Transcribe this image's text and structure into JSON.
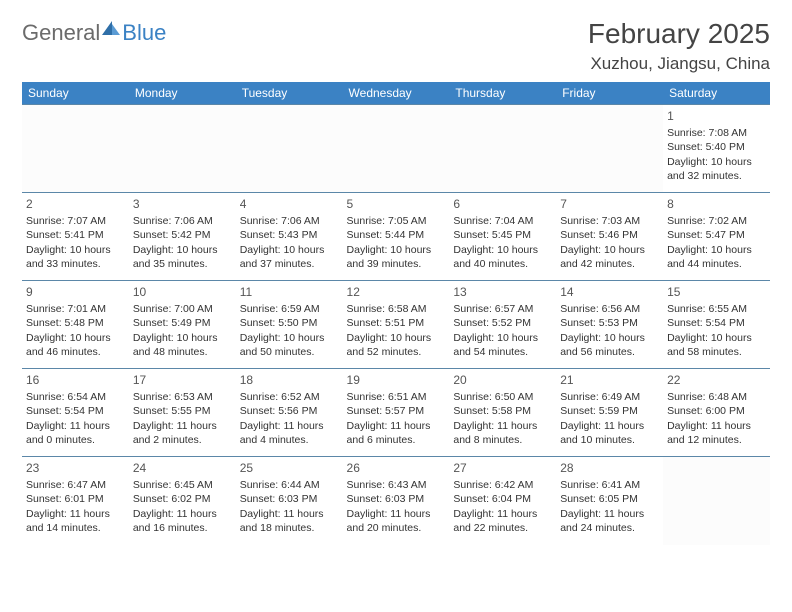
{
  "logo": {
    "general": "General",
    "blue": "Blue"
  },
  "title": "February 2025",
  "location": "Xuzhou, Jiangsu, China",
  "colors": {
    "header_bg": "#3b82c4",
    "header_text": "#ffffff",
    "row_border": "#5b87a8",
    "text": "#333333",
    "title_text": "#444444",
    "logo_gray": "#6b6b6b",
    "logo_blue": "#3b82c4"
  },
  "typography": {
    "title_fontsize": 28,
    "location_fontsize": 17,
    "dayhead_fontsize": 12,
    "daynum_fontsize": 12,
    "cell_fontsize": 10.5
  },
  "weekdays": [
    "Sunday",
    "Monday",
    "Tuesday",
    "Wednesday",
    "Thursday",
    "Friday",
    "Saturday"
  ],
  "weeks": [
    [
      null,
      null,
      null,
      null,
      null,
      null,
      {
        "n": "1",
        "sunrise": "Sunrise: 7:08 AM",
        "sunset": "Sunset: 5:40 PM",
        "daylight": "Daylight: 10 hours and 32 minutes."
      }
    ],
    [
      {
        "n": "2",
        "sunrise": "Sunrise: 7:07 AM",
        "sunset": "Sunset: 5:41 PM",
        "daylight": "Daylight: 10 hours and 33 minutes."
      },
      {
        "n": "3",
        "sunrise": "Sunrise: 7:06 AM",
        "sunset": "Sunset: 5:42 PM",
        "daylight": "Daylight: 10 hours and 35 minutes."
      },
      {
        "n": "4",
        "sunrise": "Sunrise: 7:06 AM",
        "sunset": "Sunset: 5:43 PM",
        "daylight": "Daylight: 10 hours and 37 minutes."
      },
      {
        "n": "5",
        "sunrise": "Sunrise: 7:05 AM",
        "sunset": "Sunset: 5:44 PM",
        "daylight": "Daylight: 10 hours and 39 minutes."
      },
      {
        "n": "6",
        "sunrise": "Sunrise: 7:04 AM",
        "sunset": "Sunset: 5:45 PM",
        "daylight": "Daylight: 10 hours and 40 minutes."
      },
      {
        "n": "7",
        "sunrise": "Sunrise: 7:03 AM",
        "sunset": "Sunset: 5:46 PM",
        "daylight": "Daylight: 10 hours and 42 minutes."
      },
      {
        "n": "8",
        "sunrise": "Sunrise: 7:02 AM",
        "sunset": "Sunset: 5:47 PM",
        "daylight": "Daylight: 10 hours and 44 minutes."
      }
    ],
    [
      {
        "n": "9",
        "sunrise": "Sunrise: 7:01 AM",
        "sunset": "Sunset: 5:48 PM",
        "daylight": "Daylight: 10 hours and 46 minutes."
      },
      {
        "n": "10",
        "sunrise": "Sunrise: 7:00 AM",
        "sunset": "Sunset: 5:49 PM",
        "daylight": "Daylight: 10 hours and 48 minutes."
      },
      {
        "n": "11",
        "sunrise": "Sunrise: 6:59 AM",
        "sunset": "Sunset: 5:50 PM",
        "daylight": "Daylight: 10 hours and 50 minutes."
      },
      {
        "n": "12",
        "sunrise": "Sunrise: 6:58 AM",
        "sunset": "Sunset: 5:51 PM",
        "daylight": "Daylight: 10 hours and 52 minutes."
      },
      {
        "n": "13",
        "sunrise": "Sunrise: 6:57 AM",
        "sunset": "Sunset: 5:52 PM",
        "daylight": "Daylight: 10 hours and 54 minutes."
      },
      {
        "n": "14",
        "sunrise": "Sunrise: 6:56 AM",
        "sunset": "Sunset: 5:53 PM",
        "daylight": "Daylight: 10 hours and 56 minutes."
      },
      {
        "n": "15",
        "sunrise": "Sunrise: 6:55 AM",
        "sunset": "Sunset: 5:54 PM",
        "daylight": "Daylight: 10 hours and 58 minutes."
      }
    ],
    [
      {
        "n": "16",
        "sunrise": "Sunrise: 6:54 AM",
        "sunset": "Sunset: 5:54 PM",
        "daylight": "Daylight: 11 hours and 0 minutes."
      },
      {
        "n": "17",
        "sunrise": "Sunrise: 6:53 AM",
        "sunset": "Sunset: 5:55 PM",
        "daylight": "Daylight: 11 hours and 2 minutes."
      },
      {
        "n": "18",
        "sunrise": "Sunrise: 6:52 AM",
        "sunset": "Sunset: 5:56 PM",
        "daylight": "Daylight: 11 hours and 4 minutes."
      },
      {
        "n": "19",
        "sunrise": "Sunrise: 6:51 AM",
        "sunset": "Sunset: 5:57 PM",
        "daylight": "Daylight: 11 hours and 6 minutes."
      },
      {
        "n": "20",
        "sunrise": "Sunrise: 6:50 AM",
        "sunset": "Sunset: 5:58 PM",
        "daylight": "Daylight: 11 hours and 8 minutes."
      },
      {
        "n": "21",
        "sunrise": "Sunrise: 6:49 AM",
        "sunset": "Sunset: 5:59 PM",
        "daylight": "Daylight: 11 hours and 10 minutes."
      },
      {
        "n": "22",
        "sunrise": "Sunrise: 6:48 AM",
        "sunset": "Sunset: 6:00 PM",
        "daylight": "Daylight: 11 hours and 12 minutes."
      }
    ],
    [
      {
        "n": "23",
        "sunrise": "Sunrise: 6:47 AM",
        "sunset": "Sunset: 6:01 PM",
        "daylight": "Daylight: 11 hours and 14 minutes."
      },
      {
        "n": "24",
        "sunrise": "Sunrise: 6:45 AM",
        "sunset": "Sunset: 6:02 PM",
        "daylight": "Daylight: 11 hours and 16 minutes."
      },
      {
        "n": "25",
        "sunrise": "Sunrise: 6:44 AM",
        "sunset": "Sunset: 6:03 PM",
        "daylight": "Daylight: 11 hours and 18 minutes."
      },
      {
        "n": "26",
        "sunrise": "Sunrise: 6:43 AM",
        "sunset": "Sunset: 6:03 PM",
        "daylight": "Daylight: 11 hours and 20 minutes."
      },
      {
        "n": "27",
        "sunrise": "Sunrise: 6:42 AM",
        "sunset": "Sunset: 6:04 PM",
        "daylight": "Daylight: 11 hours and 22 minutes."
      },
      {
        "n": "28",
        "sunrise": "Sunrise: 6:41 AM",
        "sunset": "Sunset: 6:05 PM",
        "daylight": "Daylight: 11 hours and 24 minutes."
      },
      null
    ]
  ]
}
